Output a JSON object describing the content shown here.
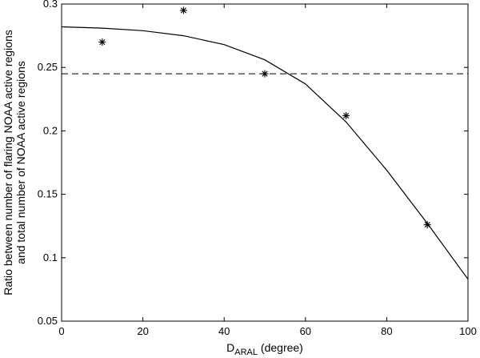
{
  "chart_data": {
    "type": "scatter",
    "title": "",
    "xlabel_main": "D",
    "xlabel_sub": "ARAL",
    "xlabel_unit": " (degree)",
    "ylabel_line1": "Ratio between number of flaring NOAA active regions",
    "ylabel_line2": "and total number of NOAA active regions",
    "xlim": [
      0,
      100
    ],
    "ylim": [
      0.05,
      0.3
    ],
    "xticks": [
      0,
      20,
      40,
      60,
      80,
      100
    ],
    "xtick_labels": [
      "0",
      "20",
      "40",
      "60",
      "80",
      "100"
    ],
    "yticks": [
      0.05,
      0.1,
      0.15,
      0.2,
      0.25,
      0.3
    ],
    "ytick_labels": [
      "0.05",
      "0.1",
      "0.15",
      "0.2",
      "0.25",
      "0.3"
    ],
    "grid": false,
    "series": [
      {
        "kind": "points",
        "marker": "asterisk",
        "x": [
          10,
          30,
          50,
          70,
          90
        ],
        "y": [
          0.27,
          0.295,
          0.245,
          0.212,
          0.126
        ]
      },
      {
        "kind": "curve",
        "style": "solid",
        "x": [
          0,
          10,
          20,
          30,
          40,
          50,
          60,
          70,
          80,
          90,
          100
        ],
        "y": [
          0.282,
          0.281,
          0.279,
          0.275,
          0.268,
          0.256,
          0.237,
          0.207,
          0.169,
          0.127,
          0.083
        ]
      },
      {
        "kind": "hline",
        "style": "dashed",
        "y": 0.245
      }
    ]
  }
}
